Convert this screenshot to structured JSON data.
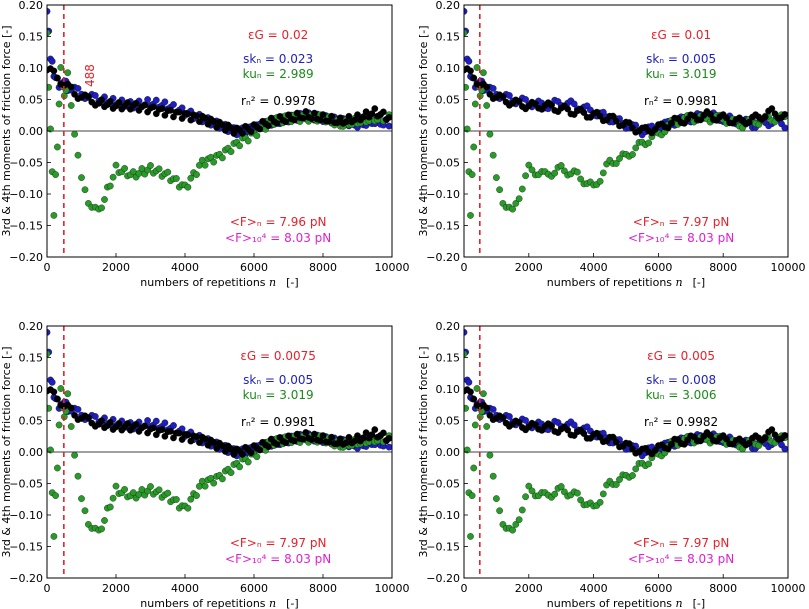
{
  "chart_data": [
    {
      "type": "scatter",
      "xlim": [
        0,
        10000
      ],
      "ylim": [
        -0.2,
        0.2
      ],
      "x_ticks": [
        "0",
        "2000",
        "4000",
        "6000",
        "8000",
        "10000"
      ],
      "y_ticks": [
        "0.20",
        "0.15",
        "0.10",
        "0.05",
        "0.00",
        "−0.05",
        "−0.10",
        "−0.15",
        "−0.20"
      ],
      "xlabel": "numbers of repetitions",
      "xlabel_var": "n",
      "xlabel_unit": "[-]",
      "ylabel": "3rd & 4th moments of friction force   [-]",
      "vline_x": 488,
      "vline_label": "488",
      "eps": "εG = 0.02",
      "sk": "skₙ = 0.023",
      "ku": "kuₙ = 2.989",
      "r2": "rₙ² = 0.9978",
      "Fn": "<F>ₙ = 7.96 pN",
      "F10": "<F>₁₀⁴ = 8.03 pN",
      "series": [
        {
          "color": "#1f1fbf",
          "x": [
            0,
            100,
            200,
            300,
            400,
            500,
            600,
            800,
            1000,
            1200,
            1500,
            2000,
            2500,
            3000,
            3500,
            4000,
            4500,
            5000,
            5500,
            6000,
            6500,
            7000,
            7500,
            8000,
            8500,
            9000,
            9500,
            10000
          ],
          "y": [
            0.19,
            0.12,
            0.09,
            0.08,
            0.07,
            0.08,
            0.07,
            0.065,
            0.06,
            0.055,
            0.05,
            0.045,
            0.04,
            0.045,
            0.04,
            0.03,
            0.02,
            0.01,
            0.0,
            0.005,
            0.015,
            0.02,
            0.025,
            0.02,
            0.015,
            0.01,
            0.015,
            0.01
          ]
        },
        {
          "color": "#2a9a2a",
          "x": [
            0,
            100,
            200,
            300,
            400,
            500,
            600,
            800,
            1000,
            1200,
            1500,
            2000,
            2500,
            3000,
            3500,
            4000,
            4500,
            5000,
            5500,
            6000,
            6500,
            7000,
            7500,
            8000,
            8500,
            9000,
            9500,
            10000
          ],
          "y": [
            0.15,
            0.0,
            -0.13,
            -0.02,
            0.1,
            0.05,
            0.09,
            0.0,
            -0.08,
            -0.11,
            -0.13,
            -0.06,
            -0.07,
            -0.06,
            -0.07,
            -0.09,
            -0.05,
            -0.04,
            -0.02,
            -0.005,
            0.015,
            0.02,
            0.02,
            0.02,
            0.01,
            0.015,
            0.02,
            0.02
          ]
        },
        {
          "color": "#000000",
          "x": [
            0,
            200,
            400,
            600,
            800,
            1000,
            1200,
            1500,
            2000,
            2500,
            3000,
            3500,
            4000,
            4500,
            5000,
            5500,
            6000,
            6500,
            7000,
            7500,
            8000,
            8500,
            9000,
            9500,
            10000
          ],
          "y": [
            0.1,
            0.09,
            0.08,
            0.07,
            0.06,
            0.055,
            0.05,
            0.045,
            0.04,
            0.04,
            0.035,
            0.03,
            0.025,
            0.02,
            0.01,
            0.0,
            0.005,
            0.015,
            0.02,
            0.025,
            0.02,
            0.015,
            0.02,
            0.03,
            0.02
          ]
        }
      ]
    },
    {
      "type": "scatter",
      "xlim": [
        0,
        10000
      ],
      "ylim": [
        -0.2,
        0.2
      ],
      "x_ticks": [
        "0",
        "2000",
        "4000",
        "6000",
        "8000",
        "10000"
      ],
      "y_ticks": [
        "0.20",
        "0.15",
        "0.10",
        "0.05",
        "0.00",
        "−0.05",
        "−0.10",
        "−0.15",
        "−0.20"
      ],
      "xlabel": "numbers of repetitions",
      "xlabel_var": "n",
      "xlabel_unit": "[-]",
      "ylabel": "3rd & 4th moments of friction force   [-]",
      "vline_x": 488,
      "vline_label": "",
      "eps": "εG = 0.01",
      "sk": "skₙ = 0.005",
      "ku": "kuₙ = 3.019",
      "r2": "rₙ² = 0.9981",
      "Fn": "<F>ₙ = 7.97 pN",
      "F10": "<F>₁₀⁴ = 8.03 pN",
      "series": [
        {
          "color": "#1f1fbf",
          "x": [
            0,
            100,
            200,
            300,
            400,
            500,
            600,
            800,
            1000,
            1200,
            1500,
            2000,
            2500,
            3000,
            3500,
            4000,
            4500,
            5000,
            5500,
            6000,
            6500,
            7000,
            7500,
            8000,
            8500,
            9000,
            9500,
            10000
          ],
          "y": [
            0.19,
            0.12,
            0.09,
            0.08,
            0.07,
            0.08,
            0.07,
            0.065,
            0.06,
            0.055,
            0.05,
            0.045,
            0.04,
            0.045,
            0.04,
            0.03,
            0.02,
            0.01,
            0.0,
            0.005,
            0.015,
            0.02,
            0.025,
            0.02,
            0.015,
            0.01,
            0.015,
            0.01
          ]
        },
        {
          "color": "#2a9a2a",
          "x": [
            0,
            100,
            200,
            300,
            400,
            500,
            600,
            800,
            1000,
            1200,
            1500,
            2000,
            2500,
            3000,
            3500,
            4000,
            4500,
            5000,
            5500,
            6000,
            6500,
            7000,
            7500,
            8000,
            8500,
            9000,
            9500,
            10000
          ],
          "y": [
            0.15,
            0.0,
            -0.13,
            -0.02,
            0.1,
            0.05,
            0.09,
            0.0,
            -0.08,
            -0.11,
            -0.13,
            -0.06,
            -0.07,
            -0.06,
            -0.07,
            -0.09,
            -0.05,
            -0.04,
            -0.02,
            -0.005,
            0.015,
            0.02,
            0.02,
            0.02,
            0.01,
            0.015,
            0.02,
            0.02
          ]
        },
        {
          "color": "#000000",
          "x": [
            0,
            200,
            400,
            600,
            800,
            1000,
            1200,
            1500,
            2000,
            2500,
            3000,
            3500,
            4000,
            4500,
            5000,
            5500,
            6000,
            6500,
            7000,
            7500,
            8000,
            8500,
            9000,
            9500,
            10000
          ],
          "y": [
            0.1,
            0.09,
            0.08,
            0.07,
            0.06,
            0.055,
            0.05,
            0.045,
            0.04,
            0.04,
            0.035,
            0.03,
            0.025,
            0.02,
            0.01,
            0.0,
            0.005,
            0.015,
            0.02,
            0.025,
            0.02,
            0.015,
            0.02,
            0.03,
            0.02
          ]
        }
      ]
    },
    {
      "type": "scatter",
      "xlim": [
        0,
        10000
      ],
      "ylim": [
        -0.2,
        0.2
      ],
      "x_ticks": [
        "0",
        "2000",
        "4000",
        "6000",
        "8000",
        "10000"
      ],
      "y_ticks": [
        "0.20",
        "0.15",
        "0.10",
        "0.05",
        "0.00",
        "−0.05",
        "−0.10",
        "−0.15",
        "−0.20"
      ],
      "xlabel": "numbers of repetitions",
      "xlabel_var": "n",
      "xlabel_unit": "[-]",
      "ylabel": "3rd & 4th moments of friction force   [-]",
      "vline_x": 488,
      "vline_label": "",
      "eps": "εG = 0.0075",
      "sk": "skₙ = 0.005",
      "ku": "kuₙ = 3.019",
      "r2": "rₙ² = 0.9981",
      "Fn": "<F>ₙ = 7.97 pN",
      "F10": "<F>₁₀⁴ = 8.03 pN",
      "series": [
        {
          "color": "#1f1fbf",
          "x": [
            0,
            100,
            200,
            300,
            400,
            500,
            600,
            800,
            1000,
            1200,
            1500,
            2000,
            2500,
            3000,
            3500,
            4000,
            4500,
            5000,
            5500,
            6000,
            6500,
            7000,
            7500,
            8000,
            8500,
            9000,
            9500,
            10000
          ],
          "y": [
            0.19,
            0.12,
            0.09,
            0.08,
            0.07,
            0.08,
            0.07,
            0.065,
            0.06,
            0.055,
            0.05,
            0.045,
            0.04,
            0.045,
            0.04,
            0.03,
            0.02,
            0.01,
            0.0,
            0.005,
            0.015,
            0.02,
            0.025,
            0.02,
            0.015,
            0.01,
            0.015,
            0.01
          ]
        },
        {
          "color": "#2a9a2a",
          "x": [
            0,
            100,
            200,
            300,
            400,
            500,
            600,
            800,
            1000,
            1200,
            1500,
            2000,
            2500,
            3000,
            3500,
            4000,
            4500,
            5000,
            5500,
            6000,
            6500,
            7000,
            7500,
            8000,
            8500,
            9000,
            9500,
            10000
          ],
          "y": [
            0.15,
            0.0,
            -0.13,
            -0.02,
            0.1,
            0.05,
            0.09,
            0.0,
            -0.08,
            -0.11,
            -0.13,
            -0.06,
            -0.07,
            -0.06,
            -0.07,
            -0.09,
            -0.05,
            -0.04,
            -0.02,
            -0.005,
            0.015,
            0.02,
            0.02,
            0.02,
            0.01,
            0.015,
            0.02,
            0.02
          ]
        },
        {
          "color": "#000000",
          "x": [
            0,
            200,
            400,
            600,
            800,
            1000,
            1200,
            1500,
            2000,
            2500,
            3000,
            3500,
            4000,
            4500,
            5000,
            5500,
            6000,
            6500,
            7000,
            7500,
            8000,
            8500,
            9000,
            9500,
            10000
          ],
          "y": [
            0.1,
            0.09,
            0.08,
            0.07,
            0.06,
            0.055,
            0.05,
            0.045,
            0.04,
            0.04,
            0.035,
            0.03,
            0.025,
            0.02,
            0.01,
            0.0,
            0.005,
            0.015,
            0.02,
            0.025,
            0.02,
            0.015,
            0.02,
            0.03,
            0.02
          ]
        }
      ]
    },
    {
      "type": "scatter",
      "xlim": [
        0,
        10000
      ],
      "ylim": [
        -0.2,
        0.2
      ],
      "x_ticks": [
        "0",
        "2000",
        "4000",
        "6000",
        "8000",
        "10000"
      ],
      "y_ticks": [
        "0.20",
        "0.15",
        "0.10",
        "0.05",
        "0.00",
        "−0.05",
        "−0.10",
        "−0.15",
        "−0.20"
      ],
      "xlabel": "numbers of repetitions",
      "xlabel_var": "n",
      "xlabel_unit": "[-]",
      "ylabel": "3rd & 4th moments of friction force   [-]",
      "vline_x": 488,
      "vline_label": "",
      "eps": "εG = 0.005",
      "sk": "skₙ = 0.008",
      "ku": "kuₙ = 3.006",
      "r2": "rₙ² = 0.9982",
      "Fn": "<F>ₙ = 7.97 pN",
      "F10": "<F>₁₀⁴ = 8.03 pN",
      "series": [
        {
          "color": "#1f1fbf",
          "x": [
            0,
            100,
            200,
            300,
            400,
            500,
            600,
            800,
            1000,
            1200,
            1500,
            2000,
            2500,
            3000,
            3500,
            4000,
            4500,
            5000,
            5500,
            6000,
            6500,
            7000,
            7500,
            8000,
            8500,
            9000,
            9500,
            10000
          ],
          "y": [
            0.19,
            0.12,
            0.09,
            0.08,
            0.07,
            0.08,
            0.07,
            0.065,
            0.06,
            0.055,
            0.05,
            0.045,
            0.04,
            0.045,
            0.04,
            0.03,
            0.02,
            0.01,
            0.0,
            0.005,
            0.015,
            0.02,
            0.025,
            0.02,
            0.015,
            0.01,
            0.015,
            0.01
          ]
        },
        {
          "color": "#2a9a2a",
          "x": [
            0,
            100,
            200,
            300,
            400,
            500,
            600,
            800,
            1000,
            1200,
            1500,
            2000,
            2500,
            3000,
            3500,
            4000,
            4500,
            5000,
            5500,
            6000,
            6500,
            7000,
            7500,
            8000,
            8500,
            9000,
            9500,
            10000
          ],
          "y": [
            0.15,
            0.0,
            -0.13,
            -0.02,
            0.1,
            0.05,
            0.09,
            0.0,
            -0.08,
            -0.11,
            -0.13,
            -0.06,
            -0.07,
            -0.06,
            -0.07,
            -0.09,
            -0.05,
            -0.04,
            -0.02,
            -0.005,
            0.015,
            0.02,
            0.02,
            0.02,
            0.01,
            0.015,
            0.02,
            0.02
          ]
        },
        {
          "color": "#000000",
          "x": [
            0,
            200,
            400,
            600,
            800,
            1000,
            1200,
            1500,
            2000,
            2500,
            3000,
            3500,
            4000,
            4500,
            5000,
            5500,
            6000,
            6500,
            7000,
            7500,
            8000,
            8500,
            9000,
            9500,
            10000
          ],
          "y": [
            0.1,
            0.09,
            0.08,
            0.07,
            0.06,
            0.055,
            0.05,
            0.045,
            0.04,
            0.04,
            0.035,
            0.03,
            0.025,
            0.02,
            0.01,
            0.0,
            0.005,
            0.015,
            0.02,
            0.025,
            0.02,
            0.015,
            0.02,
            0.03,
            0.02
          ]
        }
      ]
    }
  ]
}
